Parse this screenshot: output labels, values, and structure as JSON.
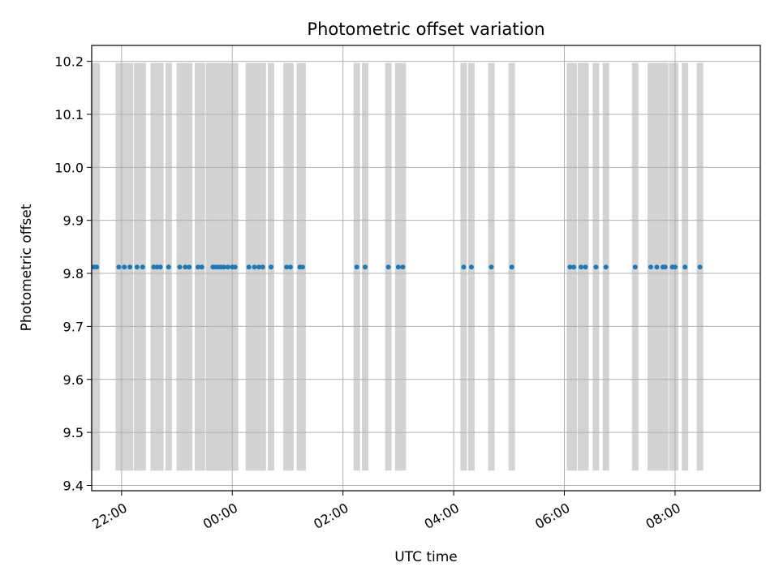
{
  "chart_data": {
    "type": "scatter",
    "title": "Photometric offset variation",
    "xlabel": "UTC time",
    "ylabel": "Photometric offset",
    "x_unit": "hours since 00:00 UTC (negative = previous evening)",
    "xlim": [
      -2.54,
      9.54
    ],
    "ylim": [
      9.39,
      10.23
    ],
    "xticks": [
      {
        "value": -2,
        "label": "22:00"
      },
      {
        "value": 0,
        "label": "00:00"
      },
      {
        "value": 2,
        "label": "02:00"
      },
      {
        "value": 4,
        "label": "04:00"
      },
      {
        "value": 6,
        "label": "06:00"
      },
      {
        "value": 8,
        "label": "08:00"
      }
    ],
    "yticks": [
      {
        "value": 9.4,
        "label": "9.4"
      },
      {
        "value": 9.5,
        "label": "9.5"
      },
      {
        "value": 9.6,
        "label": "9.6"
      },
      {
        "value": 9.7,
        "label": "9.7"
      },
      {
        "value": 9.8,
        "label": "9.8"
      },
      {
        "value": 9.9,
        "label": "9.9"
      },
      {
        "value": 10.0,
        "label": "10.0"
      },
      {
        "value": 10.1,
        "label": "10.1"
      },
      {
        "value": 10.2,
        "label": "10.2"
      }
    ],
    "grid": true,
    "points_color": "#1f77b4",
    "band_color": "#d3d3d3",
    "band_range": [
      9.428,
      10.197
    ],
    "points": [
      {
        "x": -2.5,
        "y": 9.812
      },
      {
        "x": -2.45,
        "y": 9.812
      },
      {
        "x": -2.05,
        "y": 9.812
      },
      {
        "x": -1.95,
        "y": 9.812
      },
      {
        "x": -1.85,
        "y": 9.812
      },
      {
        "x": -1.72,
        "y": 9.812
      },
      {
        "x": -1.62,
        "y": 9.812
      },
      {
        "x": -1.42,
        "y": 9.812
      },
      {
        "x": -1.36,
        "y": 9.812
      },
      {
        "x": -1.3,
        "y": 9.812
      },
      {
        "x": -1.15,
        "y": 9.812
      },
      {
        "x": -0.95,
        "y": 9.812
      },
      {
        "x": -0.85,
        "y": 9.812
      },
      {
        "x": -0.78,
        "y": 9.812
      },
      {
        "x": -0.62,
        "y": 9.812
      },
      {
        "x": -0.55,
        "y": 9.812
      },
      {
        "x": -0.35,
        "y": 9.812
      },
      {
        "x": -0.3,
        "y": 9.812
      },
      {
        "x": -0.25,
        "y": 9.812
      },
      {
        "x": -0.2,
        "y": 9.812
      },
      {
        "x": -0.15,
        "y": 9.812
      },
      {
        "x": -0.08,
        "y": 9.812
      },
      {
        "x": 0.0,
        "y": 9.812
      },
      {
        "x": 0.05,
        "y": 9.812
      },
      {
        "x": 0.3,
        "y": 9.812
      },
      {
        "x": 0.4,
        "y": 9.812
      },
      {
        "x": 0.48,
        "y": 9.812
      },
      {
        "x": 0.55,
        "y": 9.812
      },
      {
        "x": 0.7,
        "y": 9.812
      },
      {
        "x": 0.98,
        "y": 9.812
      },
      {
        "x": 1.05,
        "y": 9.812
      },
      {
        "x": 1.22,
        "y": 9.812
      },
      {
        "x": 1.27,
        "y": 9.812
      },
      {
        "x": 2.25,
        "y": 9.812
      },
      {
        "x": 2.4,
        "y": 9.812
      },
      {
        "x": 2.82,
        "y": 9.812
      },
      {
        "x": 3.0,
        "y": 9.812
      },
      {
        "x": 3.08,
        "y": 9.812
      },
      {
        "x": 4.18,
        "y": 9.812
      },
      {
        "x": 4.32,
        "y": 9.812
      },
      {
        "x": 4.68,
        "y": 9.812
      },
      {
        "x": 5.05,
        "y": 9.812
      },
      {
        "x": 6.1,
        "y": 9.812
      },
      {
        "x": 6.17,
        "y": 9.812
      },
      {
        "x": 6.3,
        "y": 9.812
      },
      {
        "x": 6.38,
        "y": 9.812
      },
      {
        "x": 6.57,
        "y": 9.812
      },
      {
        "x": 6.75,
        "y": 9.812
      },
      {
        "x": 7.28,
        "y": 9.812
      },
      {
        "x": 7.56,
        "y": 9.812
      },
      {
        "x": 7.67,
        "y": 9.812
      },
      {
        "x": 7.78,
        "y": 9.812
      },
      {
        "x": 7.82,
        "y": 9.812
      },
      {
        "x": 7.95,
        "y": 9.812
      },
      {
        "x": 8.0,
        "y": 9.812
      },
      {
        "x": 8.18,
        "y": 9.812
      },
      {
        "x": 8.45,
        "y": 9.812
      }
    ],
    "bands": [
      -2.5,
      -2.45,
      -2.05,
      -1.95,
      -1.85,
      -1.72,
      -1.62,
      -1.42,
      -1.36,
      -1.3,
      -1.15,
      -0.95,
      -0.85,
      -0.78,
      -0.62,
      -0.55,
      -0.42,
      -0.38,
      -0.34,
      -0.3,
      -0.26,
      -0.22,
      -0.18,
      -0.14,
      -0.1,
      -0.06,
      0.0,
      0.05,
      0.3,
      0.36,
      0.42,
      0.48,
      0.55,
      0.7,
      0.98,
      1.05,
      1.22,
      1.27,
      2.25,
      2.4,
      2.82,
      3.0,
      3.08,
      4.18,
      4.32,
      4.68,
      5.05,
      6.1,
      6.17,
      6.3,
      6.38,
      6.57,
      6.75,
      7.28,
      7.56,
      7.67,
      7.78,
      7.82,
      7.95,
      8.0,
      8.18,
      8.45
    ]
  }
}
